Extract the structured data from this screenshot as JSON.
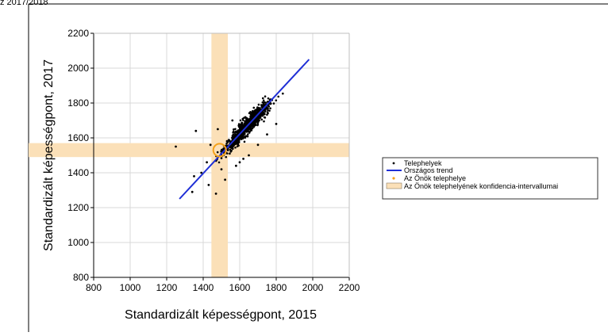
{
  "header": {
    "caption": "z 2017/2018"
  },
  "chart_data": {
    "type": "scatter",
    "title": "",
    "xlabel": "Standardizált képességpont, 2015",
    "ylabel": "Standardizált képességpont, 2017",
    "xlim": [
      800,
      2200
    ],
    "ylim": [
      800,
      2200
    ],
    "xticks": [
      "800",
      "1000",
      "1200",
      "1400",
      "1600",
      "1800",
      "2000",
      "2200"
    ],
    "yticks": [
      "800",
      "1000",
      "1200",
      "1400",
      "1600",
      "1800",
      "2000",
      "2200"
    ],
    "grid": true,
    "legend_position": "right",
    "legend": {
      "points": "Telephelyek",
      "trend": "Országos trend",
      "own_site": "Az Önök telephelye",
      "ci": "Az Önök telephelyének konfidencia-intervallumai"
    },
    "trend_line": {
      "x": [
        1270,
        1980
      ],
      "y": [
        1250,
        2050
      ]
    },
    "own_site": {
      "x": 1490,
      "y": 1530
    },
    "ci": {
      "x_range": [
        1445,
        1535
      ],
      "y_range": [
        1490,
        1570
      ]
    },
    "cloud": {
      "count": 900,
      "x_range": [
        1290,
        1980
      ],
      "x_center": 1640,
      "x_sd": 110,
      "slope": 1.12,
      "intercept_at_x": [
        1600,
        1610
      ],
      "y_sd": 38
    },
    "outliers": [
      {
        "x": 1250,
        "y": 1550
      },
      {
        "x": 1340,
        "y": 1290
      },
      {
        "x": 1350,
        "y": 1380
      },
      {
        "x": 1360,
        "y": 1640
      },
      {
        "x": 1390,
        "y": 1400
      },
      {
        "x": 1420,
        "y": 1460
      },
      {
        "x": 1430,
        "y": 1330
      },
      {
        "x": 1440,
        "y": 1560
      },
      {
        "x": 1470,
        "y": 1280
      },
      {
        "x": 1480,
        "y": 1650
      },
      {
        "x": 1500,
        "y": 1420
      },
      {
        "x": 1520,
        "y": 1360
      },
      {
        "x": 1560,
        "y": 1700
      },
      {
        "x": 1580,
        "y": 1440
      },
      {
        "x": 1600,
        "y": 1460
      },
      {
        "x": 1620,
        "y": 1480
      },
      {
        "x": 1650,
        "y": 1500
      },
      {
        "x": 1700,
        "y": 1560
      },
      {
        "x": 1750,
        "y": 1620
      },
      {
        "x": 1800,
        "y": 1680
      }
    ],
    "colors": {
      "points": "#000000",
      "trend": "#1f2fd6",
      "own_site": "#f5a21b",
      "ci": "#fbe0b8",
      "grid": "#d9d9d9"
    }
  }
}
